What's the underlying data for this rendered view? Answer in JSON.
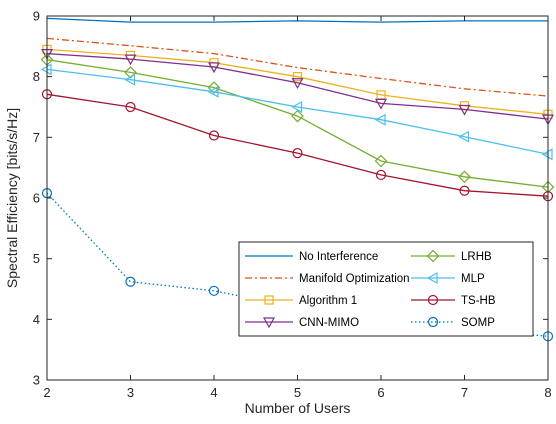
{
  "chart_data": {
    "type": "line",
    "title": "",
    "xlabel": "Number of Users",
    "ylabel": "Spectral Efficiency [bits/s/Hz]",
    "x": [
      2,
      3,
      4,
      5,
      6,
      7,
      8
    ],
    "xlim": [
      2,
      8
    ],
    "ylim": [
      3,
      9
    ],
    "xticks": [
      "2",
      "3",
      "4",
      "5",
      "6",
      "7",
      "8"
    ],
    "yticks": [
      "3",
      "4",
      "5",
      "6",
      "7",
      "8",
      "9"
    ],
    "grid": false,
    "legend_position": "center-right",
    "series": [
      {
        "name": "No Interference",
        "color": "#0072BD",
        "dash": "solid",
        "marker": "none",
        "values": [
          8.96,
          8.9,
          8.9,
          8.92,
          8.9,
          8.92,
          8.92
        ]
      },
      {
        "name": "Manifold Optimization",
        "color": "#D95319",
        "dash": "dashdot",
        "marker": "none",
        "values": [
          8.63,
          8.51,
          8.38,
          8.15,
          7.97,
          7.8,
          7.68
        ]
      },
      {
        "name": "Algorithm 1",
        "color": "#EDB120",
        "dash": "solid",
        "marker": "square",
        "values": [
          8.45,
          8.35,
          8.23,
          8.0,
          7.7,
          7.52,
          7.38
        ]
      },
      {
        "name": "CNN-MIMO",
        "color": "#7E2F8E",
        "dash": "solid",
        "marker": "triangle-down",
        "values": [
          8.38,
          8.29,
          8.16,
          7.9,
          7.56,
          7.46,
          7.3
        ]
      },
      {
        "name": "LRHB",
        "color": "#77AC30",
        "dash": "solid",
        "marker": "diamond",
        "values": [
          8.28,
          8.07,
          7.82,
          7.35,
          6.61,
          6.35,
          6.18
        ]
      },
      {
        "name": "MLP",
        "color": "#4DBEEE",
        "dash": "solid",
        "marker": "triangle-left",
        "values": [
          8.12,
          7.95,
          7.75,
          7.5,
          7.29,
          7.01,
          6.72
        ]
      },
      {
        "name": "TS-HB",
        "color": "#A2142F",
        "dash": "solid",
        "marker": "circle",
        "values": [
          7.71,
          7.5,
          7.03,
          6.74,
          6.38,
          6.12,
          6.03
        ]
      },
      {
        "name": "SOMP",
        "color": "#0072BD",
        "dash": "dotted",
        "marker": "circle",
        "values": [
          6.08,
          4.62,
          4.47,
          4.19,
          3.93,
          3.84,
          3.72
        ]
      }
    ]
  }
}
